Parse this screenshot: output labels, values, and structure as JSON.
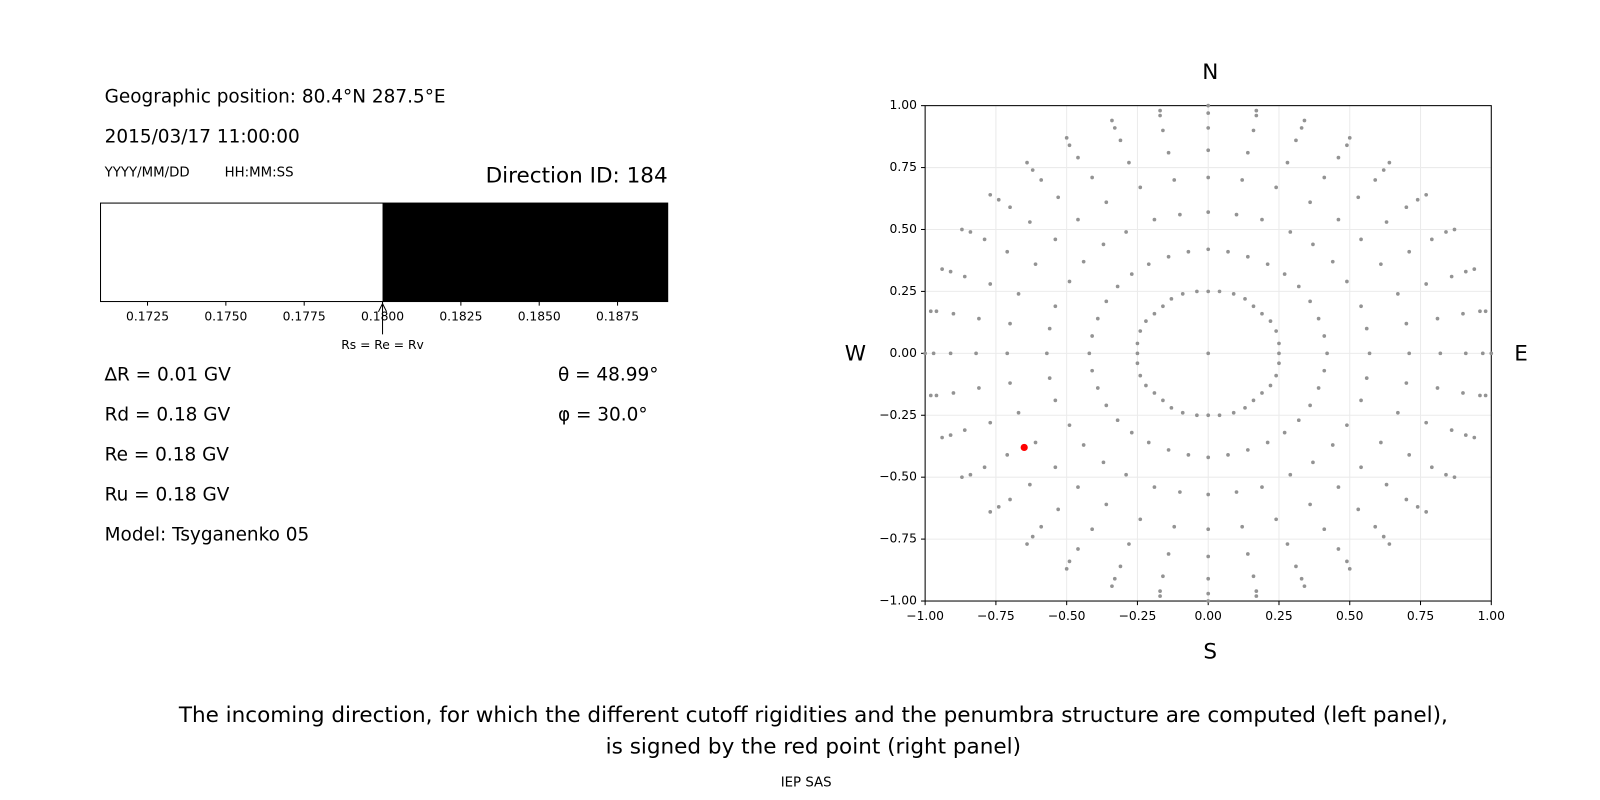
{
  "info": {
    "position": "Geographic position: 80.4°N 287.5°E",
    "datetime": "2015/03/17 11:00:00",
    "date_format": "YYYY/MM/DD",
    "time_format": "HH:MM:SS",
    "direction": "Direction ID: 184",
    "delta_r": "∆R = 0.01 GV",
    "rd": "Rd = 0.18 GV",
    "re": "Re = 0.18 GV",
    "ru": "Ru = 0.18 GV",
    "model": "Model: Tsyganenko 05",
    "theta": "θ = 48.99°",
    "phi": "φ = 30.0°"
  },
  "chart_data": [
    {
      "type": "penumbra",
      "xlim": [
        0.171,
        0.1891
      ],
      "xticks": [
        0.1725,
        {
          "value": 0.175,
          "label": "0.1750"
        },
        0.1775,
        {
          "value": 0.18,
          "label": "0.1800"
        },
        0.1825,
        {
          "value": 0.185,
          "label": "0.1850"
        },
        0.1875
      ],
      "boundary": 0.18,
      "below_color": "#ffffff",
      "above_color": "#000000",
      "annotation": "Rs = Re = Rv"
    },
    {
      "type": "scatter",
      "color": "#939393",
      "grid": true,
      "xlim": [
        -1,
        1
      ],
      "ylim": [
        -1,
        1
      ],
      "xticks": [
        {
          "value": -1,
          "label": "−1.00"
        },
        {
          "value": -0.75,
          "label": "−0.75"
        },
        {
          "value": -0.5,
          "label": "−0.50"
        },
        {
          "value": -0.25,
          "label": "−0.25"
        },
        {
          "value": 0,
          "label": "0.00"
        },
        {
          "value": 0.25,
          "label": "0.25"
        },
        {
          "value": 0.5,
          "label": "0.50"
        },
        {
          "value": 0.75,
          "label": "0.75"
        },
        {
          "value": 1,
          "label": "1.00"
        }
      ],
      "yticks": [
        {
          "value": -1,
          "label": "−1.00"
        },
        {
          "value": -0.75,
          "label": "−0.75"
        },
        {
          "value": -0.5,
          "label": "−0.50"
        },
        {
          "value": -0.25,
          "label": "−0.25"
        },
        {
          "value": 0,
          "label": "0.00"
        },
        {
          "value": 0.25,
          "label": "0.25"
        },
        {
          "value": 0.5,
          "label": "0.50"
        },
        {
          "value": 0.75,
          "label": "0.75"
        },
        {
          "value": 1,
          "label": "1.00"
        }
      ],
      "compass": {
        "top": "N",
        "bottom": "S",
        "left": "W",
        "right": "E"
      },
      "highlight": {
        "x": -0.65,
        "y": -0.38,
        "color": "#ff0000"
      },
      "x": [
        0,
        0.25,
        0.25,
        0.24,
        0.22,
        0.19,
        0.16,
        0.13,
        0.09,
        0.04,
        0,
        -0.04,
        -0.09,
        -0.13,
        -0.16,
        -0.19,
        -0.22,
        -0.24,
        -0.25,
        -0.25,
        -0.25,
        -0.24,
        -0.22,
        -0.19,
        -0.16,
        -0.13,
        -0.09,
        -0.04,
        0,
        0.04,
        0.09,
        0.13,
        0.16,
        0.19,
        0.22,
        0.24,
        0.25,
        0.42,
        0.41,
        0.39,
        0.36,
        0.32,
        0.27,
        0.21,
        0.14,
        0.07,
        0,
        -0.07,
        -0.14,
        -0.21,
        -0.27,
        -0.32,
        -0.36,
        -0.39,
        -0.41,
        -0.42,
        -0.41,
        -0.39,
        -0.36,
        -0.32,
        -0.27,
        -0.21,
        -0.14,
        -0.07,
        0,
        0.07,
        0.14,
        0.21,
        0.27,
        0.32,
        0.36,
        0.39,
        0.41,
        0.57,
        0.56,
        0.54,
        0.49,
        0.44,
        0.37,
        0.29,
        0.19,
        0.1,
        0,
        -0.1,
        -0.19,
        -0.29,
        -0.37,
        -0.44,
        -0.49,
        -0.54,
        -0.56,
        -0.57,
        -0.56,
        -0.54,
        -0.49,
        -0.44,
        -0.37,
        -0.29,
        -0.19,
        -0.1,
        0,
        0.1,
        0.19,
        0.29,
        0.37,
        0.44,
        0.49,
        0.54,
        0.56,
        0.71,
        0.7,
        0.67,
        0.61,
        0.54,
        0.46,
        0.36,
        0.24,
        0.12,
        0,
        -0.12,
        -0.24,
        -0.36,
        -0.46,
        -0.54,
        -0.61,
        -0.67,
        -0.7,
        -0.71,
        -0.7,
        -0.67,
        -0.61,
        -0.54,
        -0.46,
        -0.36,
        -0.24,
        -0.12,
        0,
        0.12,
        0.24,
        0.36,
        0.46,
        0.54,
        0.61,
        0.67,
        0.7,
        0.82,
        0.81,
        0.77,
        0.71,
        0.63,
        0.53,
        0.41,
        0.28,
        0.14,
        0,
        -0.14,
        -0.28,
        -0.41,
        -0.53,
        -0.63,
        -0.71,
        -0.77,
        -0.81,
        -0.82,
        -0.81,
        -0.77,
        -0.71,
        -0.63,
        -0.53,
        -0.41,
        -0.28,
        -0.14,
        0,
        0.14,
        0.28,
        0.41,
        0.53,
        0.63,
        0.71,
        0.77,
        0.81,
        0.91,
        0.9,
        0.86,
        0.79,
        0.7,
        0.59,
        0.46,
        0.31,
        0.16,
        0,
        -0.16,
        -0.31,
        -0.46,
        -0.59,
        -0.7,
        -0.79,
        -0.86,
        -0.9,
        -0.91,
        -0.9,
        -0.86,
        -0.79,
        -0.7,
        -0.59,
        -0.46,
        -0.31,
        -0.16,
        0,
        0.16,
        0.31,
        0.46,
        0.59,
        0.7,
        0.79,
        0.86,
        0.9,
        0.97,
        0.96,
        0.91,
        0.84,
        0.74,
        0.62,
        0.49,
        0.33,
        0.17,
        0,
        -0.17,
        -0.33,
        -0.49,
        -0.62,
        -0.74,
        -0.84,
        -0.91,
        -0.96,
        -0.97,
        -0.96,
        -0.91,
        -0.84,
        -0.74,
        -0.62,
        -0.49,
        -0.33,
        -0.17,
        0,
        0.17,
        0.33,
        0.49,
        0.62,
        0.74,
        0.84,
        0.91,
        0.96,
        1,
        0.98,
        0.94,
        0.87,
        0.77,
        0.64,
        0.5,
        0.34,
        0.17,
        0,
        -0.17,
        -0.34,
        -0.5,
        -0.64,
        -0.77,
        -0.87,
        -0.94,
        -0.98,
        -1,
        -0.98,
        -0.94,
        -0.87,
        -0.77,
        -0.64,
        -0.5,
        -0.34,
        -0.17,
        0,
        0.17,
        0.34,
        0.5,
        0.64,
        0.77,
        0.87,
        0.94,
        0.98
      ],
      "y": [
        0,
        0,
        0.04,
        0.09,
        0.13,
        0.16,
        0.19,
        0.22,
        0.24,
        0.25,
        0.25,
        0.25,
        0.24,
        0.22,
        0.19,
        0.16,
        0.13,
        0.09,
        0.04,
        0,
        -0.04,
        -0.09,
        -0.13,
        -0.16,
        -0.19,
        -0.22,
        -0.24,
        -0.25,
        -0.25,
        -0.25,
        -0.24,
        -0.22,
        -0.19,
        -0.16,
        -0.13,
        -0.09,
        -0.04,
        0,
        0.07,
        0.14,
        0.21,
        0.27,
        0.32,
        0.36,
        0.39,
        0.41,
        0.42,
        0.41,
        0.39,
        0.36,
        0.32,
        0.27,
        0.21,
        0.14,
        0.07,
        0,
        -0.07,
        -0.14,
        -0.21,
        -0.27,
        -0.32,
        -0.36,
        -0.39,
        -0.41,
        -0.42,
        -0.41,
        -0.39,
        -0.36,
        -0.32,
        -0.27,
        -0.21,
        -0.14,
        -0.07,
        0,
        0.1,
        0.19,
        0.29,
        0.37,
        0.44,
        0.49,
        0.54,
        0.56,
        0.57,
        0.56,
        0.54,
        0.49,
        0.44,
        0.37,
        0.29,
        0.19,
        0.1,
        0,
        -0.1,
        -0.19,
        -0.29,
        -0.37,
        -0.44,
        -0.49,
        -0.54,
        -0.56,
        -0.57,
        -0.56,
        -0.54,
        -0.49,
        -0.44,
        -0.37,
        -0.29,
        -0.19,
        -0.1,
        0,
        0.12,
        0.24,
        0.36,
        0.46,
        0.54,
        0.61,
        0.67,
        0.7,
        0.71,
        0.7,
        0.67,
        0.61,
        0.54,
        0.46,
        0.36,
        0.24,
        0.12,
        0,
        -0.12,
        -0.24,
        -0.36,
        -0.46,
        -0.54,
        -0.61,
        -0.67,
        -0.7,
        -0.71,
        -0.7,
        -0.67,
        -0.61,
        -0.54,
        -0.46,
        -0.36,
        -0.24,
        -0.12,
        0,
        0.14,
        0.28,
        0.41,
        0.53,
        0.63,
        0.71,
        0.77,
        0.81,
        0.82,
        0.81,
        0.77,
        0.71,
        0.63,
        0.53,
        0.41,
        0.28,
        0.14,
        0,
        -0.14,
        -0.28,
        -0.41,
        -0.53,
        -0.63,
        -0.71,
        -0.77,
        -0.81,
        -0.82,
        -0.81,
        -0.77,
        -0.71,
        -0.63,
        -0.53,
        -0.41,
        -0.28,
        -0.14,
        0,
        0.16,
        0.31,
        0.46,
        0.59,
        0.7,
        0.79,
        0.86,
        0.9,
        0.91,
        0.9,
        0.86,
        0.79,
        0.7,
        0.59,
        0.46,
        0.31,
        0.16,
        0,
        -0.16,
        -0.31,
        -0.46,
        -0.59,
        -0.7,
        -0.79,
        -0.86,
        -0.9,
        -0.91,
        -0.9,
        -0.86,
        -0.79,
        -0.7,
        -0.59,
        -0.46,
        -0.31,
        -0.16,
        0,
        0.17,
        0.33,
        0.49,
        0.62,
        0.74,
        0.84,
        0.91,
        0.96,
        0.97,
        0.96,
        0.91,
        0.84,
        0.74,
        0.62,
        0.49,
        0.33,
        0.17,
        0,
        -0.17,
        -0.33,
        -0.49,
        -0.62,
        -0.74,
        -0.84,
        -0.91,
        -0.96,
        -0.97,
        -0.96,
        -0.91,
        -0.84,
        -0.74,
        -0.62,
        -0.49,
        -0.33,
        -0.17,
        0,
        0.17,
        0.34,
        0.5,
        0.64,
        0.77,
        0.87,
        0.94,
        0.98,
        1,
        0.98,
        0.94,
        0.87,
        0.77,
        0.64,
        0.5,
        0.34,
        0.17,
        0,
        -0.17,
        -0.34,
        -0.5,
        -0.64,
        -0.77,
        -0.87,
        -0.94,
        -0.98,
        -1,
        -0.98,
        -0.94,
        -0.87,
        -0.77,
        -0.64,
        -0.5,
        -0.34,
        -0.17
      ]
    }
  ],
  "caption": [
    "The incoming direction, for which the different cutoff rigidities and the penumbra structure are computed (left panel),",
    "is signed by the red point (right panel)"
  ],
  "footer": "IEP SAS"
}
